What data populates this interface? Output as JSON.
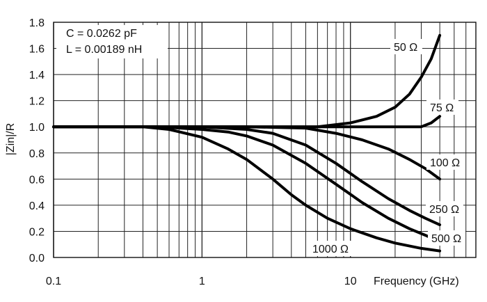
{
  "chart_data": {
    "type": "line",
    "title": "",
    "xlabel": "Frequency (GHz)",
    "ylabel": "|Zin|/R",
    "x_scale": "log",
    "xlim": [
      0.1,
      70
    ],
    "ylim": [
      0,
      1.8
    ],
    "grid": true,
    "x_ticks": [
      {
        "value": 0.1,
        "label": "0.1"
      },
      {
        "value": 1,
        "label": "1"
      },
      {
        "value": 10,
        "label": "10"
      }
    ],
    "y_ticks": [
      {
        "value": 0.0,
        "label": "0.0"
      },
      {
        "value": 0.2,
        "label": "0.2"
      },
      {
        "value": 0.4,
        "label": "0.4"
      },
      {
        "value": 0.6,
        "label": "0.6"
      },
      {
        "value": 0.8,
        "label": "0.8"
      },
      {
        "value": 1.0,
        "label": "1.0"
      },
      {
        "value": 1.2,
        "label": "1.2"
      },
      {
        "value": 1.4,
        "label": "1.4"
      },
      {
        "value": 1.6,
        "label": "1.6"
      },
      {
        "value": 1.8,
        "label": "1.8"
      }
    ],
    "annotations": [
      "C = 0.0262 pF",
      "L = 0.00189 nH"
    ],
    "series": [
      {
        "name": "50 Ω",
        "x": [
          0.1,
          1,
          3,
          6,
          10,
          15,
          20,
          25,
          30,
          35,
          40
        ],
        "y": [
          1.0,
          1.0,
          1.0,
          1.0,
          1.03,
          1.08,
          1.15,
          1.25,
          1.38,
          1.52,
          1.7
        ]
      },
      {
        "name": "75 Ω",
        "x": [
          0.1,
          1,
          10,
          25,
          30,
          35,
          40
        ],
        "y": [
          1.0,
          1.0,
          1.0,
          1.0,
          1.0,
          1.03,
          1.08
        ]
      },
      {
        "name": "100 Ω",
        "x": [
          0.1,
          2,
          5,
          8,
          12,
          18,
          25,
          32,
          40
        ],
        "y": [
          1.0,
          1.0,
          0.99,
          0.95,
          0.9,
          0.83,
          0.75,
          0.68,
          0.6
        ]
      },
      {
        "name": "250 Ω",
        "x": [
          0.1,
          1,
          2,
          3,
          5,
          8,
          12,
          18,
          25,
          32,
          40
        ],
        "y": [
          1.0,
          1.0,
          0.98,
          0.95,
          0.86,
          0.72,
          0.58,
          0.45,
          0.36,
          0.3,
          0.25
        ]
      },
      {
        "name": "500 Ω",
        "x": [
          0.1,
          0.5,
          1,
          1.5,
          2,
          3,
          5,
          8,
          12,
          18,
          25,
          32,
          40
        ],
        "y": [
          1.0,
          1.0,
          0.98,
          0.96,
          0.93,
          0.86,
          0.72,
          0.56,
          0.42,
          0.3,
          0.22,
          0.17,
          0.12
        ]
      },
      {
        "name": "1000 Ω",
        "x": [
          0.1,
          0.4,
          0.6,
          1,
          1.5,
          2,
          3,
          4,
          5,
          7,
          10,
          15,
          20,
          30,
          40
        ],
        "y": [
          1.0,
          1.0,
          0.98,
          0.92,
          0.83,
          0.75,
          0.6,
          0.48,
          0.4,
          0.3,
          0.22,
          0.15,
          0.11,
          0.07,
          0.05
        ]
      }
    ]
  }
}
